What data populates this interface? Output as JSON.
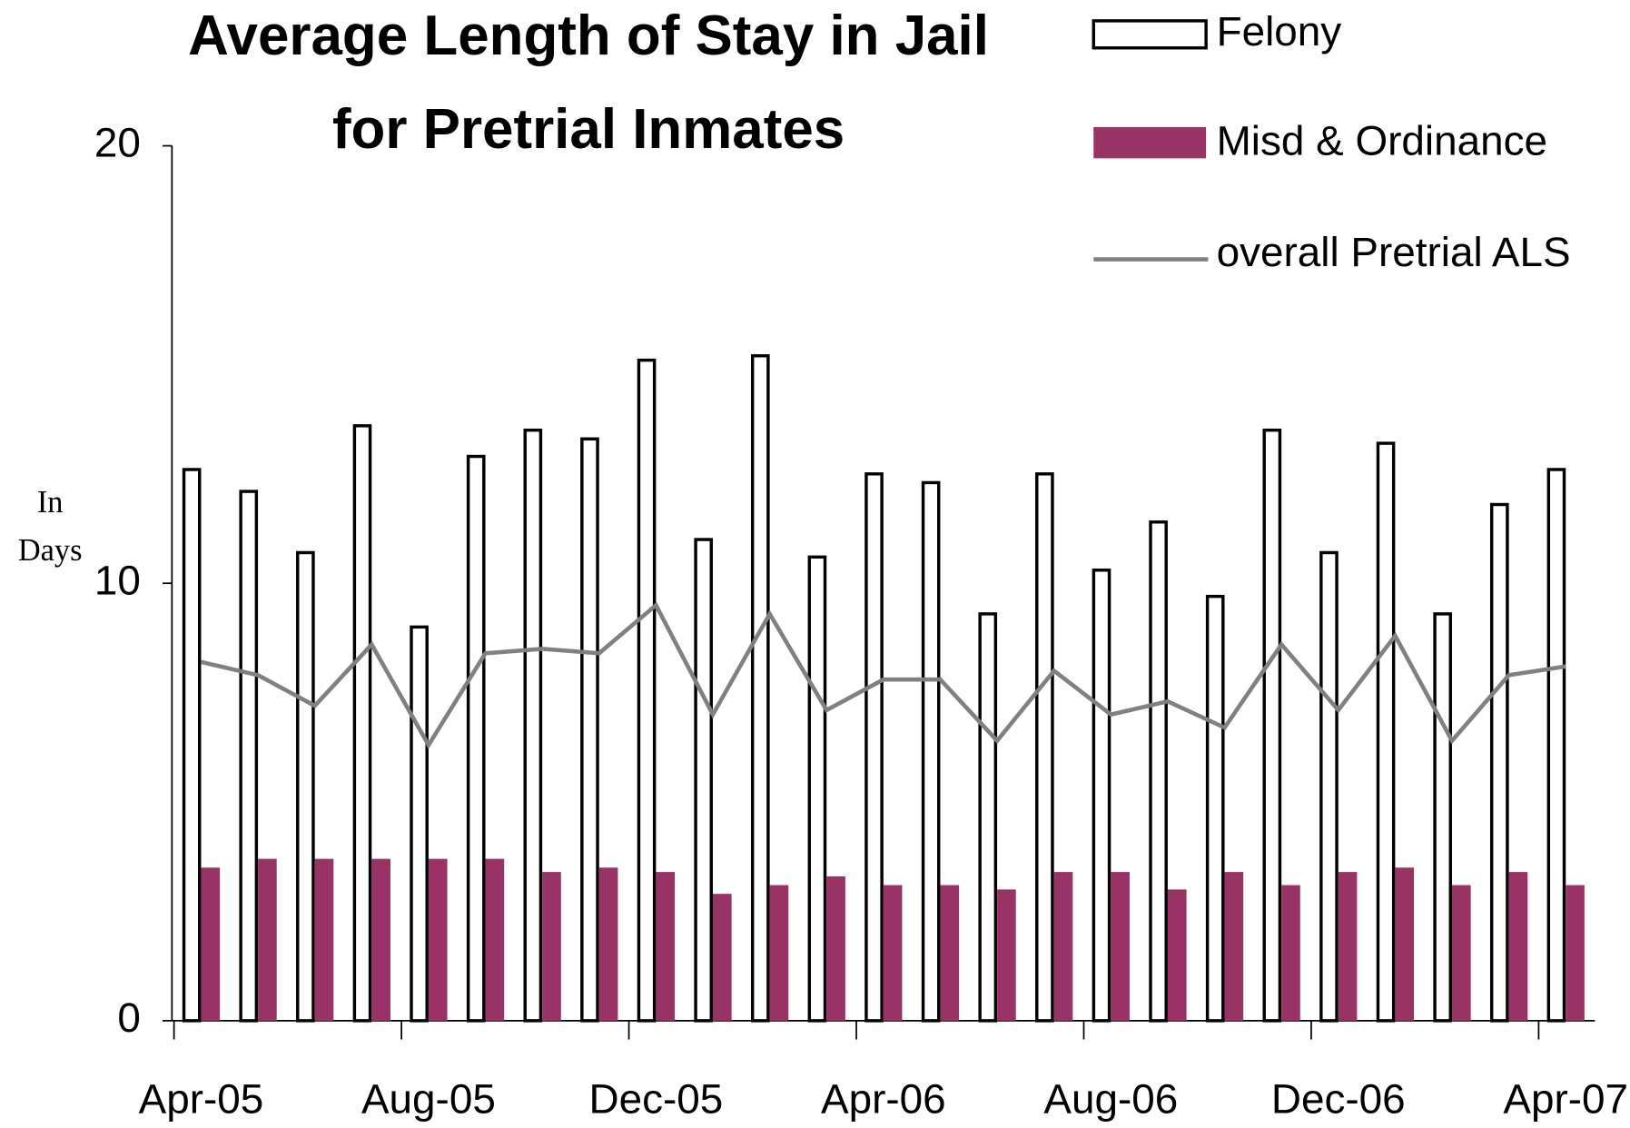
{
  "chart_data": {
    "type": "bar",
    "title_lines": [
      "Average Length of Stay in Jail",
      "for Pretrial Inmates"
    ],
    "y_label": [
      "In",
      "Days"
    ],
    "categories": [
      "Apr-05",
      null,
      null,
      null,
      "Aug-05",
      null,
      null,
      null,
      "Dec-05",
      null,
      null,
      null,
      "Apr-06",
      null,
      null,
      null,
      "Aug-06",
      null,
      null,
      null,
      "Dec-06",
      null,
      null,
      null,
      "Apr-07"
    ],
    "ylim": [
      0,
      20
    ],
    "yticks": [
      0,
      10,
      20
    ],
    "series": [
      {
        "name": "Felony",
        "type": "bar",
        "color": "#ffffff",
        "edge_color": "#000000",
        "values": [
          12.6,
          12.1,
          10.7,
          13.6,
          9.0,
          12.9,
          13.5,
          13.3,
          15.1,
          11.0,
          15.2,
          10.6,
          12.5,
          12.3,
          9.3,
          12.5,
          10.3,
          11.4,
          9.7,
          13.5,
          10.7,
          13.2,
          9.3,
          11.8,
          12.6
        ]
      },
      {
        "name": "Misd & Ordinance",
        "type": "bar",
        "color": "#993366",
        "values": [
          3.5,
          3.7,
          3.7,
          3.7,
          3.7,
          3.7,
          3.4,
          3.5,
          3.4,
          2.9,
          3.1,
          3.3,
          3.1,
          3.1,
          3.0,
          3.4,
          3.4,
          3.0,
          3.4,
          3.1,
          3.4,
          3.5,
          3.1,
          3.4,
          3.1
        ]
      },
      {
        "name": "overall Pretrial ALS",
        "type": "line",
        "color": "#808080",
        "values": [
          8.2,
          7.9,
          7.2,
          8.6,
          6.3,
          8.4,
          8.5,
          8.4,
          9.5,
          7.0,
          9.3,
          7.1,
          7.8,
          7.8,
          6.4,
          8.0,
          7.0,
          7.3,
          6.7,
          8.6,
          7.1,
          8.8,
          6.4,
          7.9,
          8.1
        ]
      }
    ]
  }
}
